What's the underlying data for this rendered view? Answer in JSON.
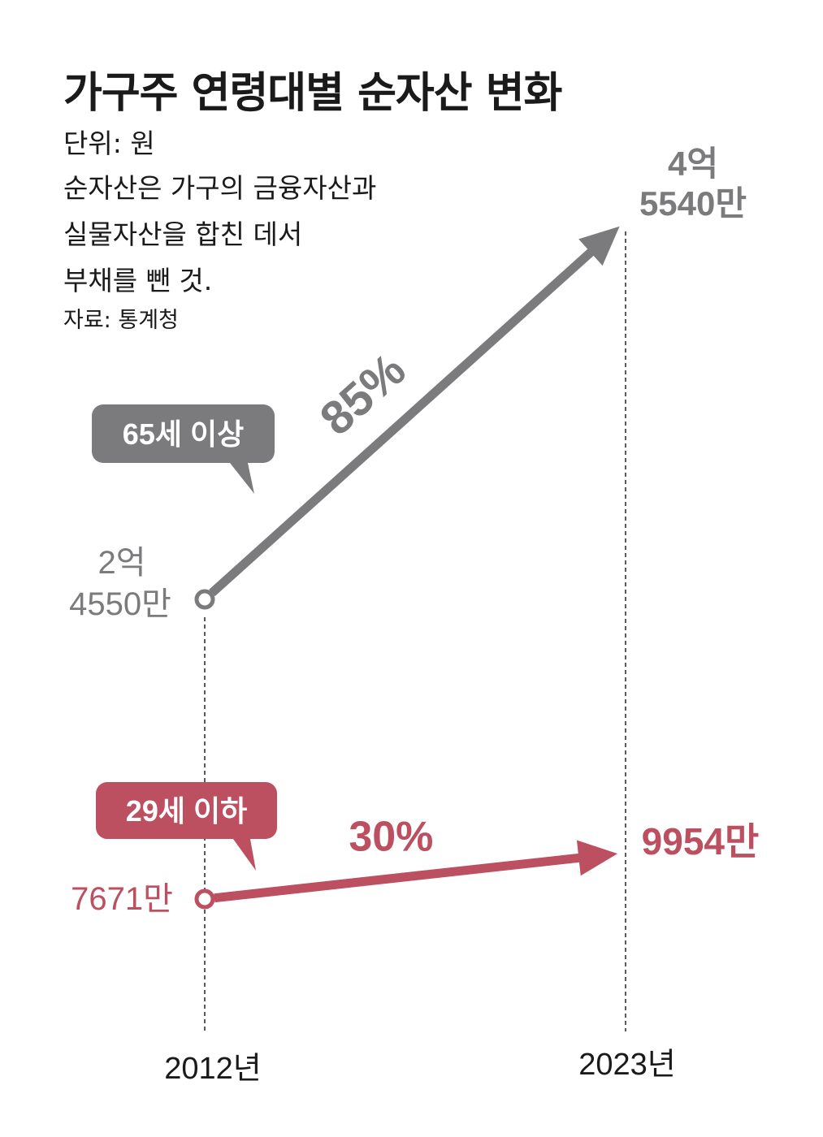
{
  "title": "가구주 연령대별 순자산 변화",
  "unit_label": "단위: 원",
  "description_lines": [
    "순자산은 가구의 금융자산과",
    "실물자산을 합친 데서",
    "부채를 뺀 것."
  ],
  "source": "자료: 통계청",
  "colors": {
    "older": "#7b7b7d",
    "younger": "#bc4f60",
    "text": "#1a1a1a"
  },
  "chart_data": {
    "type": "line",
    "x": [
      "2012년",
      "2023년"
    ],
    "series": [
      {
        "name": "65세 이상",
        "values": [
          245500000,
          455400000
        ],
        "start_label": [
          "2억",
          "4550만"
        ],
        "end_label": [
          "4억",
          "5540만"
        ],
        "change_label": "85%"
      },
      {
        "name": "29세 이하",
        "values": [
          76710000,
          99540000
        ],
        "start_label": [
          "7671만"
        ],
        "end_label": [
          "9954만"
        ],
        "change_label": "30%"
      }
    ]
  }
}
